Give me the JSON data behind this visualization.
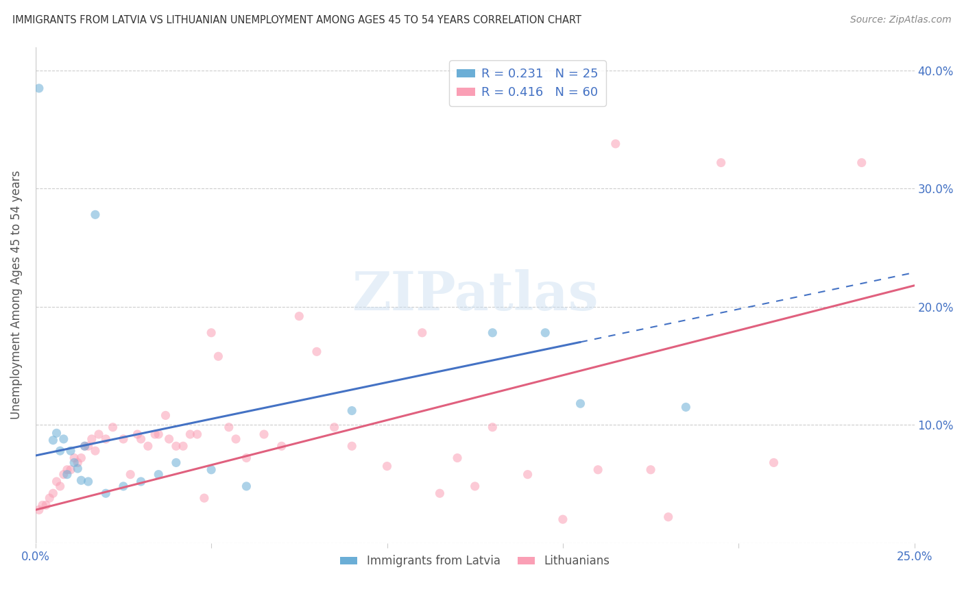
{
  "title": "IMMIGRANTS FROM LATVIA VS LITHUANIAN UNEMPLOYMENT AMONG AGES 45 TO 54 YEARS CORRELATION CHART",
  "source": "Source: ZipAtlas.com",
  "ylabel": "Unemployment Among Ages 45 to 54 years",
  "xlim": [
    0.0,
    0.25
  ],
  "ylim": [
    0.0,
    0.42
  ],
  "legend1_label": "R = 0.231   N = 25",
  "legend2_label": "R = 0.416   N = 60",
  "legend_bottom_label1": "Immigrants from Latvia",
  "legend_bottom_label2": "Lithuanians",
  "blue_color": "#6baed6",
  "pink_color": "#fa9fb5",
  "blue_line_intercept": 0.074,
  "blue_line_slope": 0.62,
  "blue_line_xmax_solid": 0.155,
  "pink_line_intercept": 0.028,
  "pink_line_slope": 0.76,
  "blue_scatter": [
    [
      0.001,
      0.385
    ],
    [
      0.005,
      0.087
    ],
    [
      0.006,
      0.093
    ],
    [
      0.007,
      0.078
    ],
    [
      0.008,
      0.088
    ],
    [
      0.009,
      0.058
    ],
    [
      0.01,
      0.078
    ],
    [
      0.011,
      0.068
    ],
    [
      0.012,
      0.063
    ],
    [
      0.013,
      0.053
    ],
    [
      0.014,
      0.082
    ],
    [
      0.015,
      0.052
    ],
    [
      0.017,
      0.278
    ],
    [
      0.02,
      0.042
    ],
    [
      0.025,
      0.048
    ],
    [
      0.03,
      0.052
    ],
    [
      0.035,
      0.058
    ],
    [
      0.04,
      0.068
    ],
    [
      0.05,
      0.062
    ],
    [
      0.06,
      0.048
    ],
    [
      0.09,
      0.112
    ],
    [
      0.13,
      0.178
    ],
    [
      0.145,
      0.178
    ],
    [
      0.155,
      0.118
    ],
    [
      0.185,
      0.115
    ]
  ],
  "pink_scatter": [
    [
      0.001,
      0.028
    ],
    [
      0.002,
      0.032
    ],
    [
      0.003,
      0.032
    ],
    [
      0.004,
      0.038
    ],
    [
      0.005,
      0.042
    ],
    [
      0.006,
      0.052
    ],
    [
      0.007,
      0.048
    ],
    [
      0.008,
      0.058
    ],
    [
      0.009,
      0.062
    ],
    [
      0.01,
      0.062
    ],
    [
      0.011,
      0.072
    ],
    [
      0.012,
      0.068
    ],
    [
      0.013,
      0.072
    ],
    [
      0.014,
      0.082
    ],
    [
      0.015,
      0.082
    ],
    [
      0.016,
      0.088
    ],
    [
      0.017,
      0.078
    ],
    [
      0.018,
      0.092
    ],
    [
      0.02,
      0.088
    ],
    [
      0.022,
      0.098
    ],
    [
      0.025,
      0.088
    ],
    [
      0.027,
      0.058
    ],
    [
      0.029,
      0.092
    ],
    [
      0.03,
      0.088
    ],
    [
      0.032,
      0.082
    ],
    [
      0.034,
      0.092
    ],
    [
      0.035,
      0.092
    ],
    [
      0.037,
      0.108
    ],
    [
      0.038,
      0.088
    ],
    [
      0.04,
      0.082
    ],
    [
      0.042,
      0.082
    ],
    [
      0.044,
      0.092
    ],
    [
      0.046,
      0.092
    ],
    [
      0.048,
      0.038
    ],
    [
      0.05,
      0.178
    ],
    [
      0.052,
      0.158
    ],
    [
      0.055,
      0.098
    ],
    [
      0.057,
      0.088
    ],
    [
      0.06,
      0.072
    ],
    [
      0.065,
      0.092
    ],
    [
      0.07,
      0.082
    ],
    [
      0.075,
      0.192
    ],
    [
      0.08,
      0.162
    ],
    [
      0.085,
      0.098
    ],
    [
      0.09,
      0.082
    ],
    [
      0.1,
      0.065
    ],
    [
      0.11,
      0.178
    ],
    [
      0.115,
      0.042
    ],
    [
      0.12,
      0.072
    ],
    [
      0.125,
      0.048
    ],
    [
      0.13,
      0.098
    ],
    [
      0.14,
      0.058
    ],
    [
      0.15,
      0.02
    ],
    [
      0.16,
      0.062
    ],
    [
      0.165,
      0.338
    ],
    [
      0.175,
      0.062
    ],
    [
      0.18,
      0.022
    ],
    [
      0.195,
      0.322
    ],
    [
      0.21,
      0.068
    ],
    [
      0.235,
      0.322
    ]
  ],
  "grid_color": "#cccccc",
  "title_color": "#333333",
  "axis_label_color": "#555555",
  "tick_color": "#4472c4",
  "blue_line_color": "#4472c4",
  "pink_line_color": "#e0607e"
}
